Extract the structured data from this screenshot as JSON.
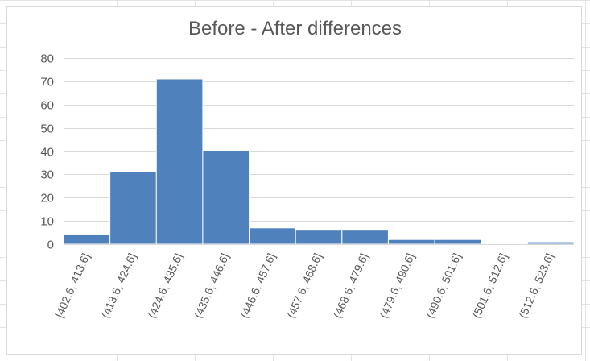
{
  "chart_data": {
    "type": "bar",
    "title": "Before - After differences",
    "xlabel": "",
    "ylabel": "",
    "categories": [
      "[402.6, 413.6]",
      "(413.6, 424.6]",
      "(424.6, 435.6]",
      "(435.6, 446.6]",
      "(446.6, 457.6]",
      "(457.6, 468.6]",
      "(468.6, 479.6]",
      "(479.6, 490.6]",
      "(490.6, 501.6]",
      "(501.6, 512.6]",
      "(512.6, 523.6]"
    ],
    "values": [
      4,
      31,
      71,
      40,
      7,
      6,
      6,
      2,
      2,
      0,
      1
    ],
    "ylim": [
      0,
      80
    ],
    "yticks": [
      0,
      10,
      20,
      30,
      40,
      50,
      60,
      70,
      80
    ],
    "grid": true,
    "legend": "none",
    "bar_color": "#4f81bd",
    "grid_color": "#d9d9d9"
  }
}
